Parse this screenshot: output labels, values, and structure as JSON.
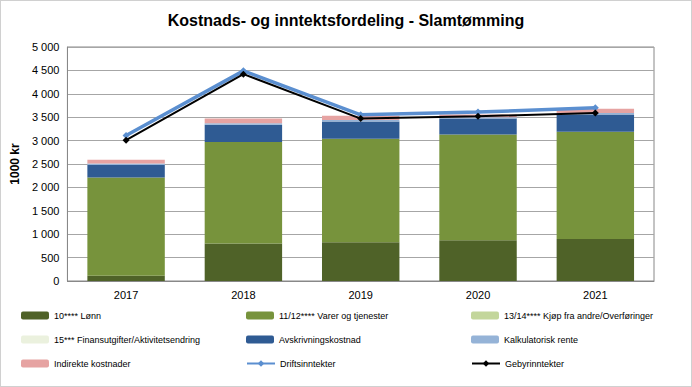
{
  "chart_data": {
    "type": "bar",
    "title": "Kostnads- og inntektsfordeling - Slamtømming",
    "y_label": "1000 kr",
    "categories": [
      "2017",
      "2018",
      "2019",
      "2020",
      "2021"
    ],
    "stacked": true,
    "grid": true,
    "legend": "bottom",
    "ylim": [
      0,
      5000
    ],
    "yticks": [
      0,
      500,
      {
        "value": 1000,
        "label": "1 000"
      },
      {
        "value": 1500,
        "label": "1 500"
      },
      {
        "value": 2000,
        "label": "2 000"
      },
      {
        "value": 2500,
        "label": "2 500"
      },
      {
        "value": 3000,
        "label": "3 000"
      },
      {
        "value": 3500,
        "label": "3 500"
      },
      {
        "value": 4000,
        "label": "4 000"
      },
      {
        "value": 4500,
        "label": "4 500"
      },
      {
        "value": 5000,
        "label": "5 000"
      }
    ],
    "series": [
      {
        "name": "10**** Lønn",
        "type": "bar",
        "color": "#4f6228",
        "values": [
          110,
          800,
          830,
          870,
          900
        ]
      },
      {
        "name": "11/12**** Varer og tjenester",
        "type": "bar",
        "color": "#77933c",
        "values": [
          2100,
          2170,
          2210,
          2260,
          2290
        ]
      },
      {
        "name": "13/14**** Kjøp fra andre/Overføringer",
        "type": "bar",
        "color": "#c3d69b",
        "values": [
          0,
          0,
          0,
          0,
          0
        ]
      },
      {
        "name": "15*** Finansutgifter/Aktivitetsendring",
        "type": "bar",
        "color": "#ebf1de",
        "values": [
          0,
          0,
          0,
          0,
          0
        ]
      },
      {
        "name": "Avskrivningskostnad",
        "type": "bar",
        "color": "#2f5b93",
        "values": [
          270,
          370,
          370,
          340,
          370
        ]
      },
      {
        "name": "Kalkulatorisk rente",
        "type": "bar",
        "color": "#95b3d7",
        "values": [
          30,
          30,
          30,
          30,
          30
        ]
      },
      {
        "name": "Indirekte kostnader",
        "type": "bar",
        "color": "#e6a3a2",
        "values": [
          80,
          100,
          90,
          60,
          90
        ]
      },
      {
        "name": "Driftsinntekter",
        "type": "line",
        "color": "#5b8fd0",
        "marker": "diamond",
        "values": [
          3110,
          4490,
          3550,
          3610,
          3700
        ]
      },
      {
        "name": "Gebyrinntekter",
        "type": "line",
        "color": "#000000",
        "marker": "diamond",
        "values": [
          3010,
          4420,
          3470,
          3520,
          3590
        ]
      }
    ]
  }
}
